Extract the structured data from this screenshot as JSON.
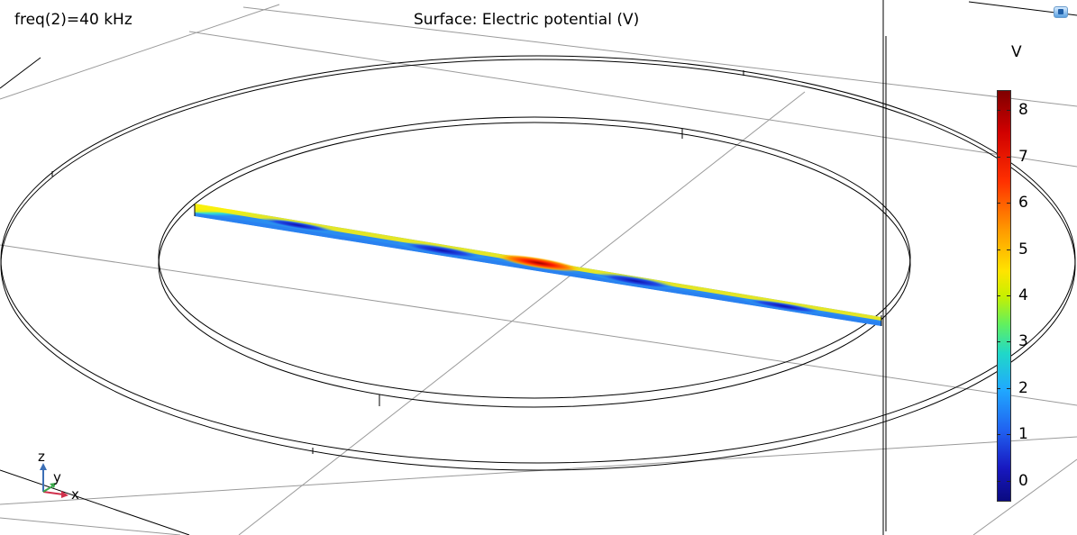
{
  "header": {
    "frequency_label": "freq(2)=40 kHz",
    "title": "Surface: Electric potential (V)"
  },
  "colorbar": {
    "unit": "V",
    "ticks": [
      "8",
      "7",
      "6",
      "5",
      "4",
      "3",
      "2",
      "1",
      "0"
    ],
    "range": [
      -0.4,
      8.4
    ]
  },
  "axes_triad": {
    "z": "z",
    "y": "y",
    "x": "x"
  },
  "colors": {
    "background": "#ffffff",
    "wireframe": "#000000",
    "grid": "#9a9a9a",
    "axis_x": "#d0314c",
    "axis_y": "#3aa84a",
    "axis_z": "#3b6fb6"
  },
  "icons": {
    "corner": "view-toolbar-icon"
  }
}
